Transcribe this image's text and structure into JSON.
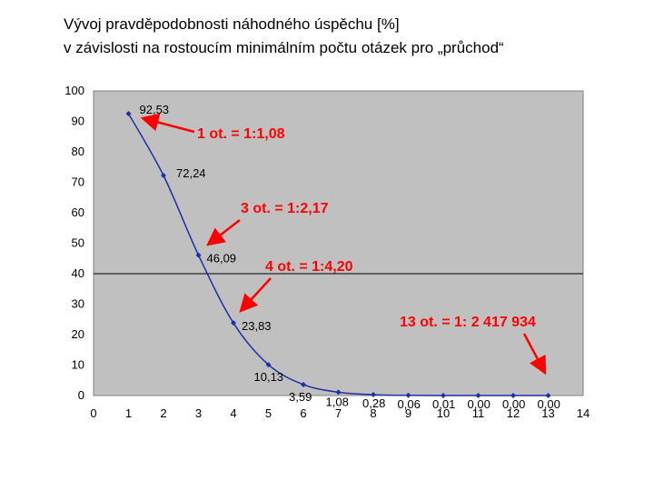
{
  "title": {
    "line1": "Vývoj pravděpodobnosti náhodného úspěchu [%]",
    "line2": "v závislosti na rostoucím minimálním počtu otázek pro „průchod“"
  },
  "colors": {
    "plot_bg": "#c0c0c0",
    "series": "#1f2fa8",
    "annotation": "#ff0000"
  },
  "chart_data": {
    "type": "line",
    "title": "Vývoj pravděpodobnosti náhodného úspěchu [%] v závislosti na rostoucím minimálním počtu otázek pro „průchod“",
    "xlabel": "",
    "ylabel": "",
    "xlim": [
      0,
      14
    ],
    "ylim": [
      0,
      100
    ],
    "x_ticks": [
      0,
      1,
      2,
      3,
      4,
      5,
      6,
      7,
      8,
      9,
      10,
      11,
      12,
      13,
      14
    ],
    "y_ticks": [
      0,
      10,
      20,
      30,
      40,
      50,
      60,
      70,
      80,
      90,
      100
    ],
    "grid": "horizontal line at 40",
    "series": [
      {
        "x": [
          1,
          2,
          3,
          4,
          5,
          6,
          7,
          8,
          9,
          10,
          11,
          12,
          13
        ],
        "values": [
          92.53,
          72.24,
          46.09,
          23.83,
          10.13,
          3.59,
          1.08,
          0.28,
          0.06,
          0.01,
          0.0,
          0.0,
          0.0
        ],
        "labels": [
          "92,53",
          "72,24",
          "46,09",
          "23,83",
          "10,13",
          "3,59",
          "1,08",
          "0,28",
          "0,06",
          "0,01",
          "0,00",
          "0,00",
          "0,00"
        ]
      }
    ],
    "annotations": [
      {
        "text": "1 ot. = 1:1,08",
        "target_x": 1,
        "target_y": 92.53
      },
      {
        "text": "3 ot. = 1:2,17",
        "target_x": 3,
        "target_y": 46.09
      },
      {
        "text": "4 ot. = 1:4,20",
        "target_x": 4,
        "target_y": 23.83
      },
      {
        "text": "13 ot. = 1: 2 417 934",
        "target_x": 13,
        "target_y": 0.0
      }
    ]
  }
}
